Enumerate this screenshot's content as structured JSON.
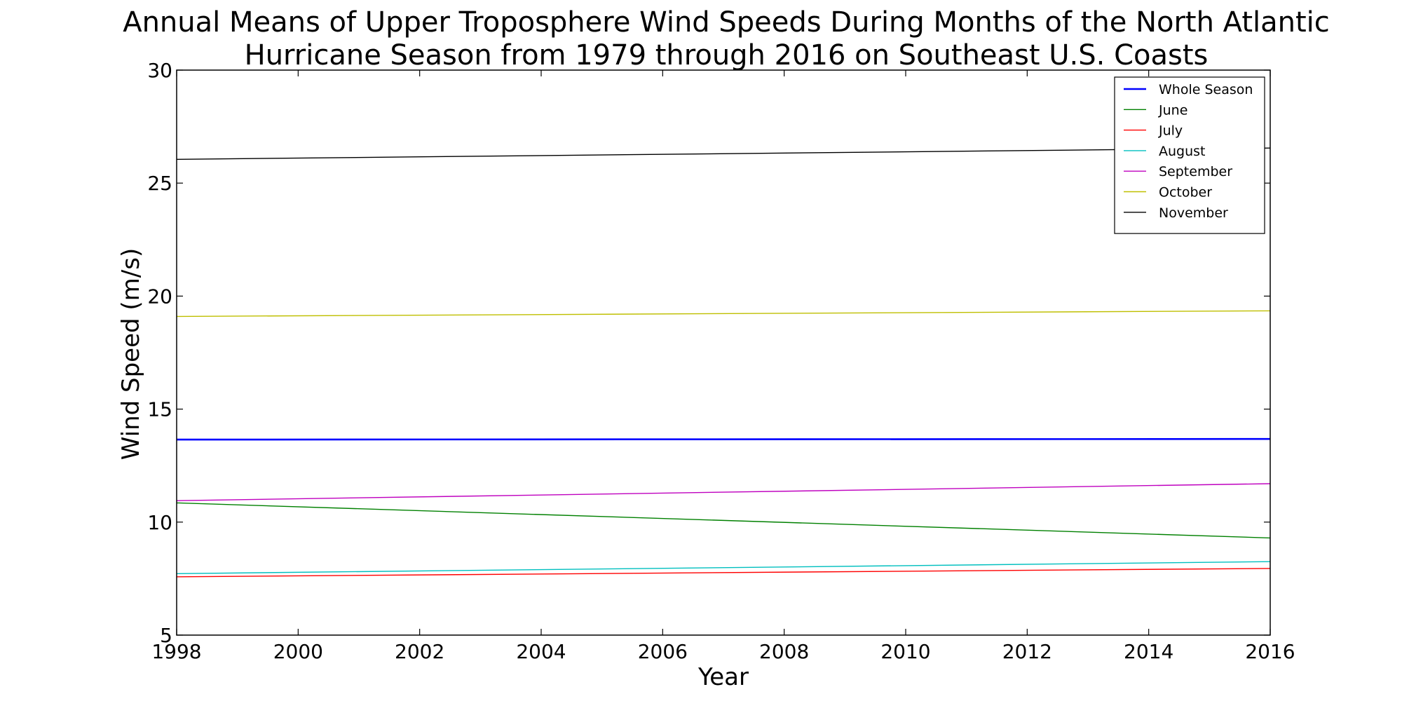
{
  "chart_data": {
    "type": "line",
    "title": "Annual Means of Upper Troposphere Wind Speeds During Months of the North Atlantic Hurricane Season from 1979 through 2016 on Southeast U.S. Coasts",
    "title_lines": [
      "Annual Means of Upper Troposphere Wind Speeds During Months of the North Atlantic",
      "Hurricane Season from 1979 through 2016 on Southeast U.S. Coasts"
    ],
    "xlabel": "Year",
    "ylabel": "Wind Speed (m/s)",
    "xlim": [
      1998,
      2016
    ],
    "ylim": [
      5,
      30
    ],
    "xticks": [
      1998,
      2000,
      2002,
      2004,
      2006,
      2008,
      2010,
      2012,
      2014,
      2016
    ],
    "yticks": [
      5,
      10,
      15,
      20,
      25,
      30
    ],
    "grid": false,
    "legend_position": "top-right",
    "x": [
      1998,
      2016
    ],
    "series": [
      {
        "name": "Whole Season",
        "color": "#0000ff",
        "bold": true,
        "values": [
          13.65,
          13.68
        ]
      },
      {
        "name": "June",
        "color": "#008000",
        "bold": false,
        "values": [
          10.85,
          9.3
        ]
      },
      {
        "name": "July",
        "color": "#ff0000",
        "bold": false,
        "values": [
          7.58,
          7.95
        ]
      },
      {
        "name": "August",
        "color": "#00bfbf",
        "bold": false,
        "values": [
          7.72,
          8.25
        ]
      },
      {
        "name": "September",
        "color": "#bf00bf",
        "bold": false,
        "values": [
          10.95,
          11.7
        ]
      },
      {
        "name": "October",
        "color": "#bfbf00",
        "bold": false,
        "values": [
          19.1,
          19.35
        ]
      },
      {
        "name": "November",
        "color": "#000000",
        "bold": false,
        "values": [
          26.05,
          26.55
        ]
      }
    ]
  }
}
